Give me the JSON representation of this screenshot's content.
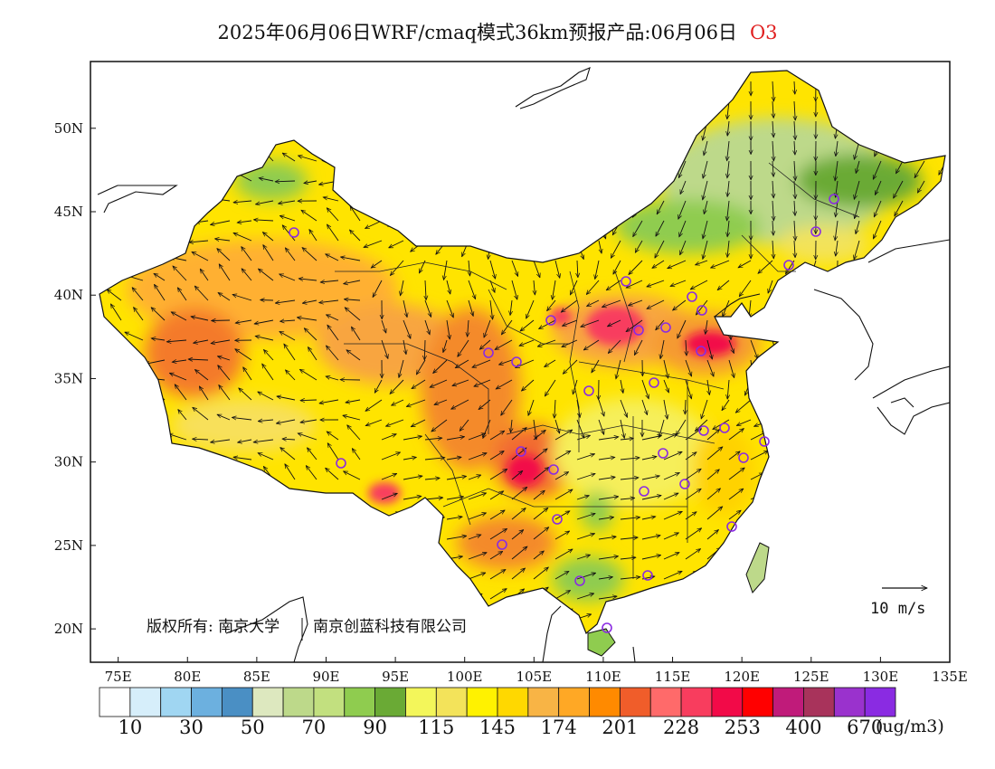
{
  "title": {
    "main": "2025年06月06日WRF/cmaq模式36km预报产品:06月06日",
    "species": "O3",
    "species_color": "#e02020"
  },
  "map": {
    "lon_range": [
      73,
      135
    ],
    "lat_range": [
      18,
      54
    ],
    "lon_ticks": [
      "75E",
      "80E",
      "85E",
      "90E",
      "95E",
      "100E",
      "105E",
      "110E",
      "115E",
      "120E",
      "125E",
      "130E",
      "135E"
    ],
    "lat_ticks": [
      "20N",
      "25N",
      "30N",
      "35N",
      "40N",
      "45N",
      "50N"
    ],
    "copyright": "版权所有: 南京大学",
    "copyright2": "南京创蓝科技有限公司",
    "wind_reference": "10 m/s",
    "city_marker_color": "#8a2be2"
  },
  "colorbar": {
    "colors": [
      "#ffffff",
      "#d6eefa",
      "#a0d6f2",
      "#6cb0df",
      "#4a8fc4",
      "#dde8bf",
      "#bdd98a",
      "#c2e07f",
      "#8fcc4f",
      "#6aaa35",
      "#f3f65a",
      "#f3e35a",
      "#fff200",
      "#ffd800",
      "#f8b445",
      "#ffa825",
      "#ff8a00",
      "#f05d2a",
      "#ff6a6a",
      "#f83d5e",
      "#f20a48",
      "#ff0000",
      "#c01b7a",
      "#a8335b",
      "#9a32cd",
      "#8a2be2"
    ],
    "labels": [
      "10",
      "30",
      "50",
      "70",
      "90",
      "115",
      "145",
      "174",
      "201",
      "228",
      "253",
      "400",
      "670"
    ],
    "unit": "(ug/m3)"
  }
}
